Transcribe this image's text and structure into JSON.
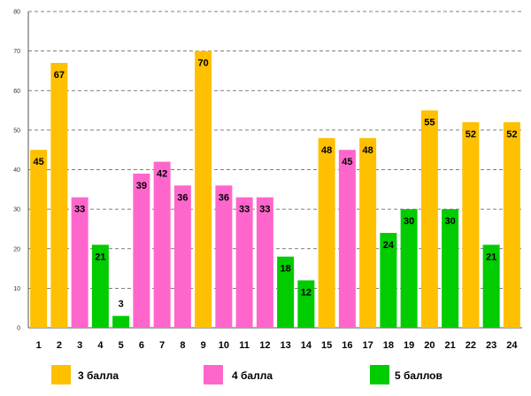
{
  "chart_data": {
    "type": "bar",
    "categories": [
      "1",
      "2",
      "3",
      "4",
      "5",
      "6",
      "7",
      "8",
      "9",
      "10",
      "11",
      "12",
      "13",
      "14",
      "15",
      "16",
      "17",
      "18",
      "19",
      "20",
      "21",
      "22",
      "23",
      "24"
    ],
    "values": [
      45,
      67,
      33,
      21,
      3,
      39,
      42,
      36,
      70,
      36,
      33,
      33,
      18,
      12,
      48,
      45,
      48,
      24,
      30,
      55,
      30,
      52,
      21,
      52
    ],
    "groups": [
      3,
      3,
      4,
      5,
      5,
      4,
      4,
      4,
      3,
      4,
      4,
      4,
      5,
      5,
      3,
      4,
      3,
      5,
      5,
      3,
      5,
      3,
      5,
      3
    ],
    "ylim": [
      0,
      80
    ],
    "yticks": [
      0,
      10,
      20,
      30,
      40,
      50,
      60,
      70,
      80
    ],
    "grid": true,
    "legend_placement": "bottom",
    "legend": [
      {
        "group": 3,
        "label": "3 балла",
        "color": "#FFC000"
      },
      {
        "group": 4,
        "label": "4 балла",
        "color": "#FF66CC"
      },
      {
        "group": 5,
        "label": "5 баллов",
        "color": "#00CC00"
      }
    ]
  }
}
